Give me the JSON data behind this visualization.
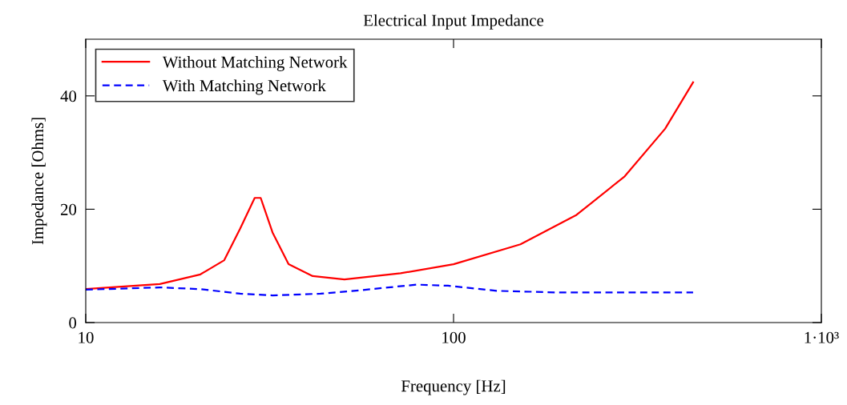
{
  "chart_data": {
    "type": "line",
    "title": "Electrical Input Impedance",
    "xlabel": "Frequency [Hz]",
    "ylabel": "Impedance [Ohms]",
    "log": "x",
    "xlim": [
      10,
      1000
    ],
    "xticks": [
      10,
      100,
      {
        "value": 1000,
        "label": "1·10³"
      }
    ],
    "ylim": [
      0,
      50
    ],
    "yticks": [
      0,
      20,
      40
    ],
    "grid": false,
    "legend": "top left",
    "series": [
      {
        "name": "Without Matching Network",
        "color": "#ff0000",
        "line_style": "solid",
        "x": [
          10,
          15.9,
          20.5,
          23.8,
          26.3,
          28.8,
          29.9,
          32.2,
          35.6,
          41.4,
          50.5,
          71.8,
          100,
          152,
          216,
          292,
          376,
          448
        ],
        "values": [
          5.9,
          6.8,
          8.5,
          11,
          16.6,
          22,
          22,
          15.9,
          10.3,
          8.2,
          7.6,
          8.7,
          10.3,
          13.8,
          19,
          25.8,
          34.2,
          42.4
        ]
      },
      {
        "name": "With Matching Network",
        "color": "#0000ff",
        "line_style": "dashed",
        "x": [
          10,
          15.9,
          20.5,
          26.3,
          32.2,
          43.5,
          55.8,
          79.4,
          96.6,
          131,
          196,
          448
        ],
        "values": [
          5.8,
          6.2,
          5.9,
          5.1,
          4.8,
          5.1,
          5.7,
          6.7,
          6.5,
          5.6,
          5.3,
          5.3
        ]
      }
    ]
  }
}
